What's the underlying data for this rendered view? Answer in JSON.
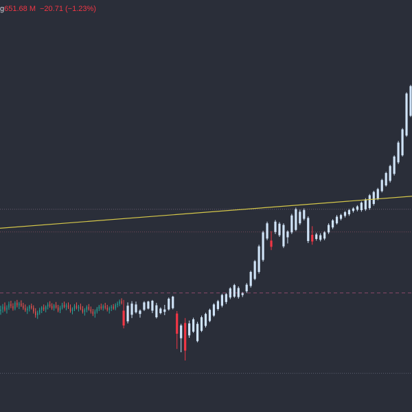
{
  "legend": {
    "symbol_fragment": "g",
    "value": "651.68 M",
    "change": "−20.71 (−1.23%)"
  },
  "colors": {
    "background": "#2a2e39",
    "up_candle": "#cfe3f7",
    "down_candle": "#f23645",
    "up_dense": "#26a69a",
    "down_dense": "#ef5350",
    "trendline": "#d6c84a",
    "level_lines": "#7a4a5a",
    "legend_value": "#f23645"
  },
  "chart_data": {
    "type": "candlestick",
    "title": "",
    "grid": false,
    "y_axis": {
      "min": 0,
      "max": 100,
      "labels_visible": false
    },
    "x_axis": {
      "labels_visible": false
    },
    "trendline": {
      "start": [
        0,
        44.6
      ],
      "end": [
        150,
        50.4
      ]
    },
    "horizontal_levels": [
      {
        "value": 49.2,
        "style": "dotted",
        "color": "#6b5f73"
      },
      {
        "value": 43.7,
        "style": "dotted",
        "color": "#7a4a5a"
      },
      {
        "value": 28.9,
        "style": "dashed",
        "color": "#8a4a6a"
      },
      {
        "value": 9.4,
        "style": "dotted",
        "color": "#5d6270"
      }
    ],
    "dense_candles": [
      {
        "x": 0,
        "o": 24.5,
        "h": 25.8,
        "l": 23.6,
        "c": 24.9
      },
      {
        "x": 1,
        "o": 24.9,
        "h": 26.2,
        "l": 24.1,
        "c": 25.6
      },
      {
        "x": 2,
        "o": 25.6,
        "h": 26.6,
        "l": 24.4,
        "c": 24.8
      },
      {
        "x": 3,
        "o": 24.8,
        "h": 25.9,
        "l": 23.9,
        "c": 25.3
      },
      {
        "x": 4,
        "o": 25.3,
        "h": 26.8,
        "l": 24.8,
        "c": 26.2
      },
      {
        "x": 5,
        "o": 26.2,
        "h": 27.0,
        "l": 25.2,
        "c": 25.7
      },
      {
        "x": 6,
        "o": 25.7,
        "h": 26.4,
        "l": 24.6,
        "c": 25.1
      },
      {
        "x": 7,
        "o": 25.1,
        "h": 26.9,
        "l": 24.7,
        "c": 26.5
      },
      {
        "x": 8,
        "o": 26.5,
        "h": 27.2,
        "l": 25.4,
        "c": 25.9
      },
      {
        "x": 9,
        "o": 25.9,
        "h": 26.7,
        "l": 25.0,
        "c": 26.3
      },
      {
        "x": 10,
        "o": 26.3,
        "h": 27.1,
        "l": 25.5,
        "c": 25.8
      },
      {
        "x": 11,
        "o": 25.8,
        "h": 26.5,
        "l": 24.8,
        "c": 25.2
      },
      {
        "x": 12,
        "o": 25.2,
        "h": 26.1,
        "l": 24.3,
        "c": 24.7
      },
      {
        "x": 13,
        "o": 24.7,
        "h": 25.6,
        "l": 23.8,
        "c": 25.1
      },
      {
        "x": 14,
        "o": 25.1,
        "h": 26.0,
        "l": 24.4,
        "c": 25.7
      },
      {
        "x": 15,
        "o": 25.7,
        "h": 26.3,
        "l": 24.9,
        "c": 25.3
      },
      {
        "x": 16,
        "o": 25.3,
        "h": 25.9,
        "l": 23.9,
        "c": 24.4
      },
      {
        "x": 17,
        "o": 24.4,
        "h": 25.2,
        "l": 22.9,
        "c": 23.5
      },
      {
        "x": 18,
        "o": 23.5,
        "h": 24.6,
        "l": 22.6,
        "c": 24.1
      },
      {
        "x": 19,
        "o": 24.1,
        "h": 25.3,
        "l": 23.6,
        "c": 24.8
      },
      {
        "x": 20,
        "o": 24.8,
        "h": 25.7,
        "l": 24.0,
        "c": 25.4
      },
      {
        "x": 21,
        "o": 25.4,
        "h": 26.1,
        "l": 24.5,
        "c": 24.9
      },
      {
        "x": 22,
        "o": 24.9,
        "h": 25.9,
        "l": 24.2,
        "c": 25.6
      },
      {
        "x": 23,
        "o": 25.6,
        "h": 26.6,
        "l": 24.9,
        "c": 26.1
      },
      {
        "x": 24,
        "o": 26.1,
        "h": 26.9,
        "l": 25.3,
        "c": 25.7
      },
      {
        "x": 25,
        "o": 25.7,
        "h": 26.4,
        "l": 24.8,
        "c": 25.2
      },
      {
        "x": 26,
        "o": 25.2,
        "h": 26.2,
        "l": 24.6,
        "c": 25.9
      },
      {
        "x": 27,
        "o": 25.9,
        "h": 26.7,
        "l": 25.1,
        "c": 25.4
      },
      {
        "x": 28,
        "o": 25.4,
        "h": 26.0,
        "l": 24.2,
        "c": 24.6
      },
      {
        "x": 29,
        "o": 24.6,
        "h": 25.8,
        "l": 24.0,
        "c": 25.3
      },
      {
        "x": 30,
        "o": 25.3,
        "h": 26.5,
        "l": 24.9,
        "c": 26.0
      },
      {
        "x": 31,
        "o": 26.0,
        "h": 26.8,
        "l": 25.2,
        "c": 25.5
      },
      {
        "x": 32,
        "o": 25.5,
        "h": 26.4,
        "l": 24.7,
        "c": 25.9
      },
      {
        "x": 33,
        "o": 25.9,
        "h": 26.6,
        "l": 25.0,
        "c": 25.3
      },
      {
        "x": 34,
        "o": 25.3,
        "h": 26.1,
        "l": 24.1,
        "c": 24.5
      },
      {
        "x": 35,
        "o": 24.5,
        "h": 25.4,
        "l": 23.7,
        "c": 25.0
      },
      {
        "x": 36,
        "o": 25.0,
        "h": 26.2,
        "l": 24.5,
        "c": 25.8
      },
      {
        "x": 37,
        "o": 25.8,
        "h": 26.6,
        "l": 24.9,
        "c": 25.2
      },
      {
        "x": 38,
        "o": 25.2,
        "h": 26.0,
        "l": 24.4,
        "c": 25.6
      },
      {
        "x": 39,
        "o": 25.6,
        "h": 26.3,
        "l": 24.7,
        "c": 25.0
      },
      {
        "x": 40,
        "o": 25.0,
        "h": 25.7,
        "l": 23.9,
        "c": 24.3
      },
      {
        "x": 41,
        "o": 24.3,
        "h": 25.2,
        "l": 23.4,
        "c": 24.8
      },
      {
        "x": 42,
        "o": 24.8,
        "h": 25.9,
        "l": 24.2,
        "c": 25.5
      },
      {
        "x": 43,
        "o": 25.5,
        "h": 26.2,
        "l": 24.6,
        "c": 24.9
      },
      {
        "x": 44,
        "o": 24.9,
        "h": 25.6,
        "l": 23.9,
        "c": 24.4
      },
      {
        "x": 45,
        "o": 24.4,
        "h": 25.0,
        "l": 23.3,
        "c": 23.8
      },
      {
        "x": 46,
        "o": 23.8,
        "h": 24.9,
        "l": 22.9,
        "c": 24.4
      },
      {
        "x": 47,
        "o": 24.4,
        "h": 25.5,
        "l": 23.9,
        "c": 25.1
      },
      {
        "x": 48,
        "o": 25.1,
        "h": 26.0,
        "l": 24.5,
        "c": 25.6
      },
      {
        "x": 49,
        "o": 25.6,
        "h": 26.3,
        "l": 24.8,
        "c": 25.2
      },
      {
        "x": 50,
        "o": 25.2,
        "h": 26.1,
        "l": 24.6,
        "c": 25.7
      },
      {
        "x": 51,
        "o": 25.7,
        "h": 26.5,
        "l": 24.9,
        "c": 25.3
      },
      {
        "x": 52,
        "o": 25.3,
        "h": 26.0,
        "l": 24.4,
        "c": 24.8
      },
      {
        "x": 53,
        "o": 24.8,
        "h": 25.6,
        "l": 23.9,
        "c": 25.2
      },
      {
        "x": 54,
        "o": 25.2,
        "h": 26.0,
        "l": 24.5,
        "c": 25.6
      },
      {
        "x": 55,
        "o": 25.6,
        "h": 26.2,
        "l": 24.8,
        "c": 25.1
      },
      {
        "x": 56,
        "o": 25.1,
        "h": 26.4,
        "l": 24.7,
        "c": 26.0
      },
      {
        "x": 57,
        "o": 26.0,
        "h": 26.8,
        "l": 25.4,
        "c": 26.3
      },
      {
        "x": 58,
        "o": 26.3,
        "h": 27.3,
        "l": 25.7,
        "c": 26.9
      },
      {
        "x": 59,
        "o": 26.9,
        "h": 27.6,
        "l": 26.1,
        "c": 26.4
      }
    ],
    "candles": [
      {
        "x": 60,
        "o": 24.6,
        "h": 27.2,
        "l": 20.3,
        "c": 21.0
      },
      {
        "x": 62,
        "o": 22.0,
        "h": 26.6,
        "l": 21.5,
        "c": 25.8
      },
      {
        "x": 64,
        "o": 23.6,
        "h": 26.9,
        "l": 22.8,
        "c": 26.3
      },
      {
        "x": 66,
        "o": 24.2,
        "h": 26.8,
        "l": 23.9,
        "c": 26.1
      },
      {
        "x": 68,
        "o": 23.8,
        "h": 24.9,
        "l": 22.9,
        "c": 24.6
      },
      {
        "x": 70,
        "o": 24.8,
        "h": 26.9,
        "l": 24.5,
        "c": 26.6
      },
      {
        "x": 72,
        "o": 25.1,
        "h": 27.0,
        "l": 24.9,
        "c": 26.8
      },
      {
        "x": 74,
        "o": 24.6,
        "h": 27.2,
        "l": 24.0,
        "c": 27.0
      },
      {
        "x": 76,
        "o": 23.0,
        "h": 26.5,
        "l": 22.7,
        "c": 25.9
      },
      {
        "x": 78,
        "o": 24.0,
        "h": 25.4,
        "l": 23.7,
        "c": 25.1
      },
      {
        "x": 80,
        "o": 24.3,
        "h": 26.0,
        "l": 23.5,
        "c": 24.9
      },
      {
        "x": 82,
        "o": 24.9,
        "h": 27.8,
        "l": 24.6,
        "c": 27.5
      },
      {
        "x": 84,
        "o": 25.2,
        "h": 28.2,
        "l": 24.9,
        "c": 28.0
      },
      {
        "x": 86,
        "o": 23.9,
        "h": 24.5,
        "l": 15.3,
        "c": 19.0
      },
      {
        "x": 88,
        "o": 17.9,
        "h": 21.4,
        "l": 14.5,
        "c": 21.0
      },
      {
        "x": 90,
        "o": 21.6,
        "h": 22.8,
        "l": 12.5,
        "c": 14.9
      },
      {
        "x": 92,
        "o": 18.6,
        "h": 22.2,
        "l": 18.0,
        "c": 21.5
      },
      {
        "x": 94,
        "o": 19.5,
        "h": 22.9,
        "l": 19.2,
        "c": 22.5
      },
      {
        "x": 96,
        "o": 17.2,
        "h": 21.9,
        "l": 16.9,
        "c": 21.4
      },
      {
        "x": 98,
        "o": 19.7,
        "h": 23.4,
        "l": 19.4,
        "c": 23.0
      },
      {
        "x": 100,
        "o": 20.9,
        "h": 24.1,
        "l": 20.5,
        "c": 23.8
      },
      {
        "x": 102,
        "o": 22.1,
        "h": 25.1,
        "l": 21.8,
        "c": 24.8
      },
      {
        "x": 104,
        "o": 23.4,
        "h": 26.4,
        "l": 23.1,
        "c": 26.1
      },
      {
        "x": 106,
        "o": 25.0,
        "h": 27.2,
        "l": 24.6,
        "c": 26.9
      },
      {
        "x": 108,
        "o": 25.8,
        "h": 28.7,
        "l": 25.4,
        "c": 28.4
      },
      {
        "x": 110,
        "o": 26.7,
        "h": 28.9,
        "l": 26.2,
        "c": 28.6
      },
      {
        "x": 112,
        "o": 27.8,
        "h": 30.3,
        "l": 27.4,
        "c": 30.0
      },
      {
        "x": 114,
        "o": 28.0,
        "h": 31.1,
        "l": 27.7,
        "c": 30.8
      },
      {
        "x": 116,
        "o": 27.9,
        "h": 30.5,
        "l": 27.5,
        "c": 30.1
      },
      {
        "x": 118,
        "o": 28.4,
        "h": 29.1,
        "l": 27.9,
        "c": 28.8
      },
      {
        "x": 120,
        "o": 29.3,
        "h": 31.3,
        "l": 28.9,
        "c": 30.9
      },
      {
        "x": 122,
        "o": 30.6,
        "h": 34.3,
        "l": 30.2,
        "c": 34.0
      },
      {
        "x": 124,
        "o": 32.3,
        "h": 36.9,
        "l": 32.0,
        "c": 36.6
      },
      {
        "x": 126,
        "o": 34.0,
        "h": 40.6,
        "l": 33.6,
        "c": 40.2
      },
      {
        "x": 128,
        "o": 36.9,
        "h": 44.0,
        "l": 36.5,
        "c": 43.6
      },
      {
        "x": 130,
        "o": 42.1,
        "h": 46.2,
        "l": 41.7,
        "c": 45.8
      },
      {
        "x": 132,
        "o": 41.6,
        "h": 43.9,
        "l": 39.3,
        "c": 40.1
      },
      {
        "x": 134,
        "o": 43.7,
        "h": 46.6,
        "l": 43.2,
        "c": 46.2
      },
      {
        "x": 136,
        "o": 42.9,
        "h": 46.1,
        "l": 42.5,
        "c": 45.7
      },
      {
        "x": 138,
        "o": 40.2,
        "h": 45.8,
        "l": 39.8,
        "c": 45.4
      },
      {
        "x": 140,
        "o": 42.4,
        "h": 44.1,
        "l": 40.9,
        "c": 43.8
      },
      {
        "x": 142,
        "o": 43.6,
        "h": 48.1,
        "l": 43.2,
        "c": 47.7
      },
      {
        "x": 144,
        "o": 44.2,
        "h": 49.6,
        "l": 43.9,
        "c": 49.2
      },
      {
        "x": 146,
        "o": 45.8,
        "h": 49.1,
        "l": 45.4,
        "c": 48.6
      },
      {
        "x": 148,
        "o": 46.9,
        "h": 49.4,
        "l": 46.5,
        "c": 49.0
      },
      {
        "x": 150,
        "o": 41.5,
        "h": 47.5,
        "l": 41.0,
        "c": 47.1
      },
      {
        "x": 152,
        "o": 43.0,
        "h": 45.1,
        "l": 40.6,
        "c": 41.4
      },
      {
        "x": 154,
        "o": 42.0,
        "h": 43.5,
        "l": 41.6,
        "c": 43.1
      },
      {
        "x": 156,
        "o": 41.8,
        "h": 43.4,
        "l": 41.4,
        "c": 42.9
      },
      {
        "x": 158,
        "o": 42.1,
        "h": 43.9,
        "l": 41.7,
        "c": 43.6
      },
      {
        "x": 160,
        "o": 43.6,
        "h": 45.8,
        "l": 43.2,
        "c": 45.4
      },
      {
        "x": 162,
        "o": 44.8,
        "h": 46.8,
        "l": 44.4,
        "c": 46.5
      },
      {
        "x": 164,
        "o": 45.8,
        "h": 47.8,
        "l": 45.5,
        "c": 47.4
      },
      {
        "x": 166,
        "o": 46.9,
        "h": 48.1,
        "l": 46.5,
        "c": 47.8
      },
      {
        "x": 168,
        "o": 47.6,
        "h": 48.8,
        "l": 47.2,
        "c": 48.5
      },
      {
        "x": 170,
        "o": 48.0,
        "h": 49.3,
        "l": 47.6,
        "c": 49.0
      },
      {
        "x": 172,
        "o": 48.8,
        "h": 49.7,
        "l": 48.4,
        "c": 49.4
      },
      {
        "x": 174,
        "o": 49.1,
        "h": 50.2,
        "l": 48.7,
        "c": 49.9
      },
      {
        "x": 176,
        "o": 49.0,
        "h": 51.1,
        "l": 48.6,
        "c": 50.8
      },
      {
        "x": 178,
        "o": 49.2,
        "h": 51.9,
        "l": 48.8,
        "c": 51.6
      },
      {
        "x": 180,
        "o": 49.5,
        "h": 52.9,
        "l": 49.1,
        "c": 52.6
      },
      {
        "x": 182,
        "o": 50.5,
        "h": 53.7,
        "l": 50.1,
        "c": 53.4
      },
      {
        "x": 184,
        "o": 51.8,
        "h": 54.4,
        "l": 51.4,
        "c": 54.1
      },
      {
        "x": 186,
        "o": 53.6,
        "h": 56.6,
        "l": 53.3,
        "c": 56.3
      },
      {
        "x": 188,
        "o": 55.0,
        "h": 58.3,
        "l": 54.7,
        "c": 58.0
      },
      {
        "x": 190,
        "o": 56.1,
        "h": 60.0,
        "l": 55.7,
        "c": 59.7
      },
      {
        "x": 192,
        "o": 57.8,
        "h": 62.3,
        "l": 57.4,
        "c": 62.0
      },
      {
        "x": 194,
        "o": 60.6,
        "h": 65.8,
        "l": 60.2,
        "c": 65.4
      },
      {
        "x": 196,
        "o": 62.3,
        "h": 68.9,
        "l": 62.0,
        "c": 68.6
      },
      {
        "x": 198,
        "o": 67.1,
        "h": 77.6,
        "l": 66.8,
        "c": 77.3
      },
      {
        "x": 200,
        "o": 71.9,
        "h": 79.4,
        "l": 71.6,
        "c": 79.1
      }
    ]
  }
}
